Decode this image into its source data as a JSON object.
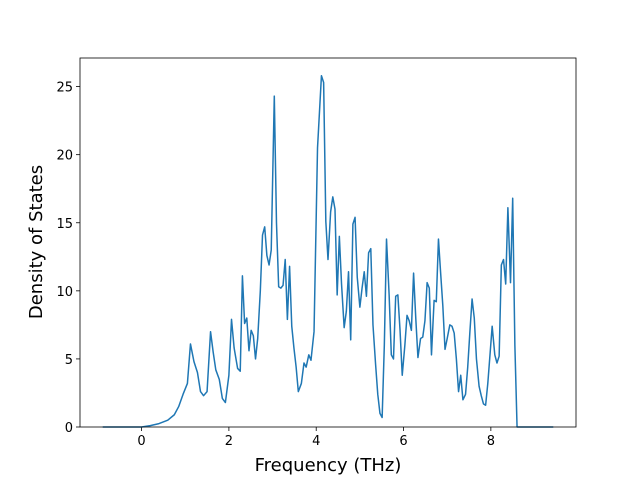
{
  "chart_data": {
    "type": "line",
    "xlabel": "Frequency (THz)",
    "ylabel": "Density of States",
    "xlim": [
      -1.41,
      9.95
    ],
    "ylim": [
      0,
      27.1
    ],
    "xticks": [
      0,
      2,
      4,
      6,
      8
    ],
    "yticks": [
      0,
      5,
      10,
      15,
      20,
      25
    ],
    "series": [
      {
        "color": "#1f77b4",
        "x": [
          -0.89,
          0.0,
          0.2,
          0.4,
          0.6,
          0.75,
          0.85,
          0.95,
          1.05,
          1.12,
          1.2,
          1.28,
          1.35,
          1.42,
          1.5,
          1.58,
          1.64,
          1.7,
          1.78,
          1.85,
          1.92,
          2.0,
          2.06,
          2.12,
          2.2,
          2.26,
          2.31,
          2.36,
          2.41,
          2.46,
          2.51,
          2.56,
          2.61,
          2.66,
          2.72,
          2.77,
          2.82,
          2.87,
          2.92,
          2.97,
          3.04,
          3.09,
          3.14,
          3.19,
          3.24,
          3.29,
          3.34,
          3.39,
          3.44,
          3.49,
          3.54,
          3.59,
          3.66,
          3.72,
          3.77,
          3.83,
          3.88,
          3.95,
          4.03,
          4.12,
          4.17,
          4.22,
          4.27,
          4.33,
          4.38,
          4.43,
          4.48,
          4.53,
          4.58,
          4.64,
          4.69,
          4.74,
          4.79,
          4.84,
          4.89,
          4.94,
          5.0,
          5.05,
          5.1,
          5.15,
          5.2,
          5.25,
          5.3,
          5.36,
          5.41,
          5.46,
          5.51,
          5.56,
          5.61,
          5.67,
          5.72,
          5.77,
          5.82,
          5.87,
          5.92,
          5.97,
          6.03,
          6.08,
          6.13,
          6.18,
          6.23,
          6.28,
          6.33,
          6.39,
          6.44,
          6.49,
          6.54,
          6.59,
          6.64,
          6.7,
          6.75,
          6.8,
          6.85,
          6.9,
          6.95,
          7.0,
          7.06,
          7.11,
          7.16,
          7.21,
          7.26,
          7.31,
          7.36,
          7.42,
          7.47,
          7.52,
          7.57,
          7.62,
          7.67,
          7.73,
          7.78,
          7.83,
          7.88,
          7.93,
          7.98,
          8.03,
          8.09,
          8.14,
          8.19,
          8.24,
          8.29,
          8.34,
          8.39,
          8.45,
          8.5,
          8.55,
          8.6,
          9.43
        ],
        "values": [
          0,
          0,
          0.1,
          0.25,
          0.5,
          0.9,
          1.5,
          2.4,
          3.2,
          6.1,
          4.8,
          4.0,
          2.6,
          2.3,
          2.6,
          7.0,
          5.5,
          4.2,
          3.5,
          2.1,
          1.8,
          3.8,
          7.9,
          5.8,
          4.3,
          4.1,
          11.1,
          7.6,
          8.0,
          5.6,
          7.1,
          6.7,
          5.0,
          6.5,
          10.0,
          14.1,
          14.7,
          12.6,
          11.9,
          13.0,
          24.3,
          15.0,
          10.3,
          10.2,
          10.4,
          12.3,
          7.9,
          11.8,
          7.4,
          5.8,
          4.4,
          2.6,
          3.2,
          4.7,
          4.4,
          5.3,
          4.9,
          7.0,
          20.5,
          25.8,
          25.3,
          15.1,
          12.3,
          15.8,
          16.9,
          16.0,
          9.7,
          14.0,
          10.5,
          7.3,
          8.5,
          11.4,
          6.4,
          14.9,
          15.4,
          11.0,
          8.8,
          10.2,
          11.4,
          9.6,
          12.8,
          13.1,
          7.5,
          4.6,
          2.4,
          1.0,
          0.7,
          6.0,
          13.8,
          9.7,
          5.3,
          5.0,
          9.6,
          9.7,
          7.1,
          3.8,
          6.0,
          8.2,
          7.8,
          7.1,
          11.3,
          8.0,
          5.1,
          6.5,
          6.6,
          7.8,
          10.6,
          10.2,
          5.3,
          9.3,
          9.2,
          13.8,
          11.3,
          8.9,
          5.7,
          6.5,
          7.5,
          7.4,
          6.9,
          5.0,
          2.6,
          3.8,
          2.0,
          2.4,
          4.4,
          7.0,
          9.4,
          8.0,
          5.0,
          3.0,
          2.3,
          1.7,
          1.6,
          3.2,
          5.3,
          7.4,
          5.3,
          4.7,
          5.2,
          11.9,
          12.3,
          10.5,
          16.1,
          10.6,
          16.8,
          6.0,
          0,
          0
        ]
      }
    ]
  }
}
